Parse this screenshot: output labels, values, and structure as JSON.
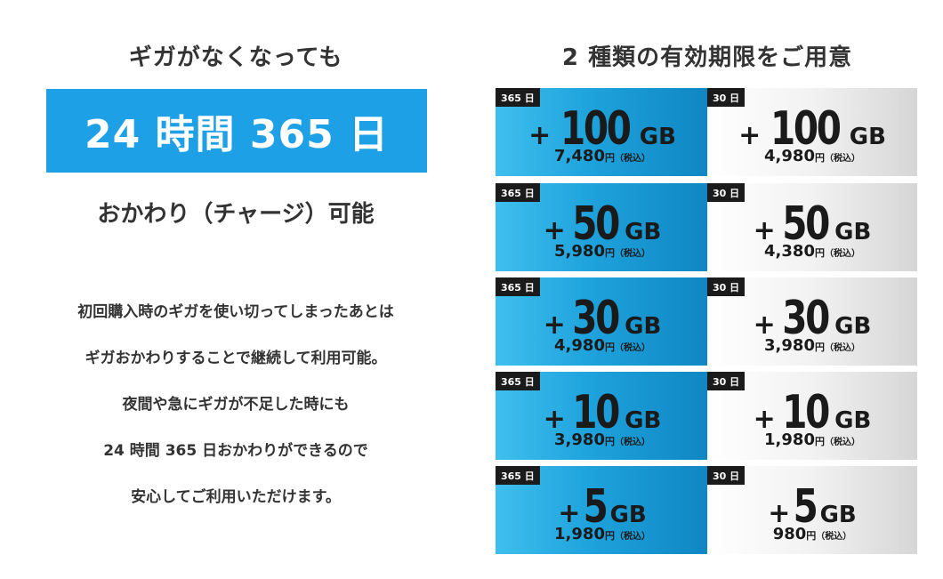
{
  "left": {
    "heading": "ギガがなくなっても",
    "banner": "24 時間 365 日",
    "subheading": "おかわり（チャージ）可能",
    "lines": [
      "初回購入時のギガを使い切ってしまったあとは",
      "ギガおかわりすることで継続して利用可能。",
      "夜間や急にギガが不足した時にも",
      "24 時間 365 日おかわりができるので",
      "安心してご利用いただけます。"
    ]
  },
  "right": {
    "heading": "2 種類の有効期限をご用意",
    "plans": [
      {
        "blue": {
          "tag": "365 日",
          "sign": "+",
          "num": "100",
          "unit": "GB",
          "price": "7,480",
          "yen": "円",
          "tax": "（税込）"
        },
        "gray": {
          "tag": "30 日",
          "sign": "+",
          "num": "100",
          "unit": "GB",
          "price": "4,980",
          "yen": "円",
          "tax": "（税込）"
        }
      },
      {
        "blue": {
          "tag": "365 日",
          "sign": "+",
          "num": "50",
          "unit": "GB",
          "price": "5,980",
          "yen": "円",
          "tax": "（税込）"
        },
        "gray": {
          "tag": "30 日",
          "sign": "+",
          "num": "50",
          "unit": "GB",
          "price": "4,380",
          "yen": "円",
          "tax": "（税込）"
        }
      },
      {
        "blue": {
          "tag": "365 日",
          "sign": "+",
          "num": "30",
          "unit": "GB",
          "price": "4,980",
          "yen": "円",
          "tax": "（税込）"
        },
        "gray": {
          "tag": "30 日",
          "sign": "+",
          "num": "30",
          "unit": "GB",
          "price": "3,980",
          "yen": "円",
          "tax": "（税込）"
        }
      },
      {
        "blue": {
          "tag": "365 日",
          "sign": "+",
          "num": "10",
          "unit": "GB",
          "price": "3,980",
          "yen": "円",
          "tax": "（税込）"
        },
        "gray": {
          "tag": "30 日",
          "sign": "+",
          "num": "10",
          "unit": "GB",
          "price": "1,980",
          "yen": "円",
          "tax": "（税込）"
        }
      },
      {
        "blue": {
          "tag": "365 日",
          "sign": "+",
          "num": "5",
          "unit": "GB",
          "price": "1,980",
          "yen": "円",
          "tax": "（税込）"
        },
        "gray": {
          "tag": "30 日",
          "sign": "+",
          "num": "5",
          "unit": "GB",
          "price": "980",
          "yen": "円",
          "tax": "（税込）"
        }
      }
    ]
  }
}
